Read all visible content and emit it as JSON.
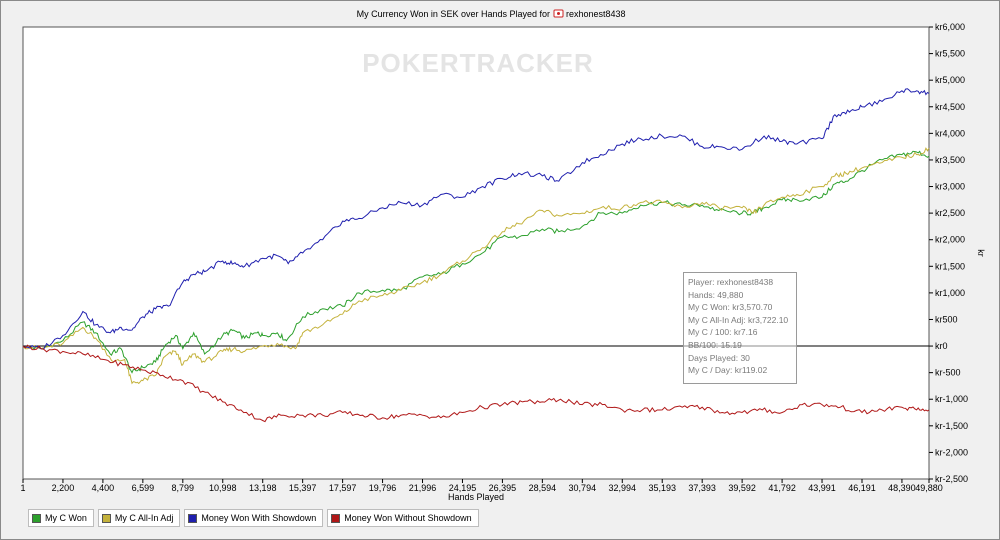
{
  "chart_data": {
    "type": "line",
    "title": "My Currency Won in SEK over Hands Played for",
    "player": "rexhonest8438",
    "watermark": "POKERTRACKER",
    "xlabel": "Hands Played",
    "ylabel": "kr",
    "xlim": [
      1,
      49880
    ],
    "ylim": [
      -2500,
      6000
    ],
    "x_ticks": [
      1,
      2200,
      4400,
      6599,
      8799,
      10998,
      13198,
      15397,
      17597,
      19796,
      21996,
      24195,
      26395,
      28594,
      30794,
      32994,
      35193,
      37393,
      39592,
      41792,
      43991,
      46191,
      48390,
      49880
    ],
    "x_tick_labels": [
      "1",
      "2,200",
      "4,400",
      "6,599",
      "8,799",
      "10,998",
      "13,198",
      "15,397",
      "17,597",
      "19,796",
      "21,996",
      "24,195",
      "26,395",
      "28,594",
      "30,794",
      "32,994",
      "35,193",
      "37,393",
      "39,592",
      "41,792",
      "43,991",
      "46,191",
      "48,390",
      "49,880"
    ],
    "y_ticks": [
      6000,
      5500,
      5000,
      4500,
      4000,
      3500,
      3000,
      2500,
      2000,
      1500,
      1000,
      500,
      0,
      -500,
      -1000,
      -1500,
      -2000,
      -2500
    ],
    "y_tick_labels": [
      "kr6,000",
      "kr5,500",
      "kr5,000",
      "kr4,500",
      "kr4,000",
      "kr3,500",
      "kr3,000",
      "kr2,500",
      "kr2,000",
      "kr1,500",
      "kr1,000",
      "kr500",
      "kr0",
      "kr-500",
      "kr-1,000",
      "kr-1,500",
      "kr-2,000",
      "kr-2,500"
    ],
    "grid": false,
    "zero_line": true,
    "legend_position": "bottom-left",
    "series": [
      {
        "name": "My C Won",
        "color": "#2ca02c",
        "points": [
          [
            1,
            0
          ],
          [
            1000,
            -50
          ],
          [
            2200,
            100
          ],
          [
            3300,
            450
          ],
          [
            4000,
            250
          ],
          [
            4800,
            -150
          ],
          [
            5400,
            -50
          ],
          [
            6000,
            -500
          ],
          [
            6599,
            -400
          ],
          [
            7300,
            -300
          ],
          [
            7800,
            0
          ],
          [
            8400,
            200
          ],
          [
            8799,
            -50
          ],
          [
            9400,
            250
          ],
          [
            10000,
            -150
          ],
          [
            10998,
            200
          ],
          [
            11600,
            300
          ],
          [
            12200,
            150
          ],
          [
            12900,
            250
          ],
          [
            13198,
            200
          ],
          [
            14000,
            250
          ],
          [
            14500,
            100
          ],
          [
            15397,
            550
          ],
          [
            16500,
            700
          ],
          [
            17597,
            750
          ],
          [
            18500,
            1000
          ],
          [
            19796,
            1050
          ],
          [
            20800,
            1050
          ],
          [
            21996,
            1300
          ],
          [
            23000,
            1350
          ],
          [
            24195,
            1550
          ],
          [
            25300,
            1750
          ],
          [
            26395,
            2050
          ],
          [
            27300,
            2050
          ],
          [
            28594,
            2200
          ],
          [
            29500,
            2150
          ],
          [
            30794,
            2250
          ],
          [
            31800,
            2500
          ],
          [
            32994,
            2500
          ],
          [
            34000,
            2650
          ],
          [
            35193,
            2700
          ],
          [
            36300,
            2650
          ],
          [
            37393,
            2650
          ],
          [
            38300,
            2550
          ],
          [
            39592,
            2500
          ],
          [
            40200,
            2500
          ],
          [
            40800,
            2600
          ],
          [
            41792,
            2750
          ],
          [
            42600,
            2750
          ],
          [
            43991,
            2800
          ],
          [
            44700,
            3050
          ],
          [
            45300,
            3100
          ],
          [
            46191,
            3300
          ],
          [
            47300,
            3500
          ],
          [
            48390,
            3600
          ],
          [
            49200,
            3650
          ],
          [
            49880,
            3570.7
          ]
        ]
      },
      {
        "name": "My C All-In Adj",
        "color": "#c4b23c",
        "points": [
          [
            1,
            0
          ],
          [
            1000,
            -50
          ],
          [
            2200,
            50
          ],
          [
            3300,
            350
          ],
          [
            4000,
            150
          ],
          [
            5000,
            -300
          ],
          [
            5600,
            -250
          ],
          [
            6000,
            -700
          ],
          [
            6599,
            -650
          ],
          [
            7300,
            -550
          ],
          [
            7800,
            -200
          ],
          [
            8400,
            -100
          ],
          [
            8799,
            -350
          ],
          [
            9400,
            -150
          ],
          [
            10000,
            -300
          ],
          [
            10998,
            -100
          ],
          [
            11600,
            -50
          ],
          [
            12200,
            -100
          ],
          [
            13198,
            0
          ],
          [
            14000,
            50
          ],
          [
            15000,
            -50
          ],
          [
            15397,
            250
          ],
          [
            16500,
            400
          ],
          [
            17597,
            600
          ],
          [
            18500,
            850
          ],
          [
            19796,
            950
          ],
          [
            20800,
            1050
          ],
          [
            21996,
            1200
          ],
          [
            23000,
            1350
          ],
          [
            24195,
            1600
          ],
          [
            25300,
            1850
          ],
          [
            26395,
            2150
          ],
          [
            27300,
            2300
          ],
          [
            28594,
            2550
          ],
          [
            29500,
            2450
          ],
          [
            30794,
            2500
          ],
          [
            31800,
            2600
          ],
          [
            32994,
            2600
          ],
          [
            34000,
            2700
          ],
          [
            35193,
            2700
          ],
          [
            36300,
            2600
          ],
          [
            37393,
            2700
          ],
          [
            38300,
            2600
          ],
          [
            39592,
            2600
          ],
          [
            40200,
            2500
          ],
          [
            40800,
            2650
          ],
          [
            41792,
            2800
          ],
          [
            42600,
            2850
          ],
          [
            43991,
            3000
          ],
          [
            44700,
            3200
          ],
          [
            45300,
            3250
          ],
          [
            46191,
            3350
          ],
          [
            47300,
            3450
          ],
          [
            48390,
            3550
          ],
          [
            49200,
            3600
          ],
          [
            49880,
            3722.1
          ]
        ]
      },
      {
        "name": "Money Won With Showdown",
        "color": "#1f1fae",
        "points": [
          [
            1,
            0
          ],
          [
            1000,
            -50
          ],
          [
            2200,
            200
          ],
          [
            3300,
            650
          ],
          [
            4000,
            400
          ],
          [
            4800,
            250
          ],
          [
            5400,
            350
          ],
          [
            6000,
            300
          ],
          [
            6599,
            550
          ],
          [
            7300,
            700
          ],
          [
            8000,
            750
          ],
          [
            8799,
            1200
          ],
          [
            9400,
            1350
          ],
          [
            10000,
            1400
          ],
          [
            10998,
            1600
          ],
          [
            11600,
            1550
          ],
          [
            12200,
            1500
          ],
          [
            13198,
            1650
          ],
          [
            14000,
            1700
          ],
          [
            14600,
            1550
          ],
          [
            15397,
            1750
          ],
          [
            16500,
            2000
          ],
          [
            17597,
            2350
          ],
          [
            18500,
            2400
          ],
          [
            19796,
            2600
          ],
          [
            20800,
            2700
          ],
          [
            21996,
            2650
          ],
          [
            23000,
            2850
          ],
          [
            24195,
            2800
          ],
          [
            25300,
            3000
          ],
          [
            26395,
            3150
          ],
          [
            27300,
            3250
          ],
          [
            28594,
            3200
          ],
          [
            29500,
            3100
          ],
          [
            30794,
            3450
          ],
          [
            31800,
            3600
          ],
          [
            32994,
            3800
          ],
          [
            34000,
            3900
          ],
          [
            35193,
            3950
          ],
          [
            36300,
            3950
          ],
          [
            37393,
            3750
          ],
          [
            38300,
            3750
          ],
          [
            39592,
            3700
          ],
          [
            40800,
            3950
          ],
          [
            41792,
            3850
          ],
          [
            42600,
            3800
          ],
          [
            43991,
            3900
          ],
          [
            44700,
            4350
          ],
          [
            45500,
            4400
          ],
          [
            46191,
            4500
          ],
          [
            47300,
            4600
          ],
          [
            48390,
            4800
          ],
          [
            49200,
            4800
          ],
          [
            49880,
            4750
          ]
        ]
      },
      {
        "name": "Money Won Without Showdown",
        "color": "#b01818",
        "points": [
          [
            1,
            0
          ],
          [
            1000,
            -50
          ],
          [
            2200,
            -100
          ],
          [
            3300,
            -150
          ],
          [
            4400,
            -250
          ],
          [
            5500,
            -350
          ],
          [
            6599,
            -450
          ],
          [
            7700,
            -550
          ],
          [
            8799,
            -650
          ],
          [
            9900,
            -850
          ],
          [
            10998,
            -1050
          ],
          [
            12000,
            -1200
          ],
          [
            13198,
            -1400
          ],
          [
            14200,
            -1300
          ],
          [
            15397,
            -1300
          ],
          [
            16500,
            -1300
          ],
          [
            17597,
            -1250
          ],
          [
            18700,
            -1300
          ],
          [
            19796,
            -1350
          ],
          [
            20800,
            -1300
          ],
          [
            21996,
            -1300
          ],
          [
            23000,
            -1350
          ],
          [
            24195,
            -1250
          ],
          [
            25300,
            -1150
          ],
          [
            26395,
            -1100
          ],
          [
            27500,
            -1050
          ],
          [
            28594,
            -1050
          ],
          [
            29600,
            -1000
          ],
          [
            30794,
            -1100
          ],
          [
            31900,
            -1100
          ],
          [
            32994,
            -1200
          ],
          [
            34100,
            -1200
          ],
          [
            35193,
            -1200
          ],
          [
            36300,
            -1150
          ],
          [
            37393,
            -1150
          ],
          [
            38500,
            -1250
          ],
          [
            39592,
            -1250
          ],
          [
            40700,
            -1200
          ],
          [
            41792,
            -1250
          ],
          [
            42900,
            -1100
          ],
          [
            43991,
            -1100
          ],
          [
            45000,
            -1150
          ],
          [
            46191,
            -1250
          ],
          [
            47300,
            -1200
          ],
          [
            48390,
            -1150
          ],
          [
            49200,
            -1200
          ],
          [
            49880,
            -1200
          ]
        ]
      }
    ]
  },
  "tooltip": {
    "player": "Player: rexhonest8438",
    "hands": "Hands: 49,880",
    "c_won": "My C Won: kr3,570.70",
    "allin_adj": "My C All-In Adj: kr3,722.10",
    "c_per_100": "My C / 100: kr7.16",
    "bb_per_100": "BB/100: 15.19",
    "days_played": "Days Played: 30",
    "c_per_day": "My C / Day: kr119.02"
  }
}
